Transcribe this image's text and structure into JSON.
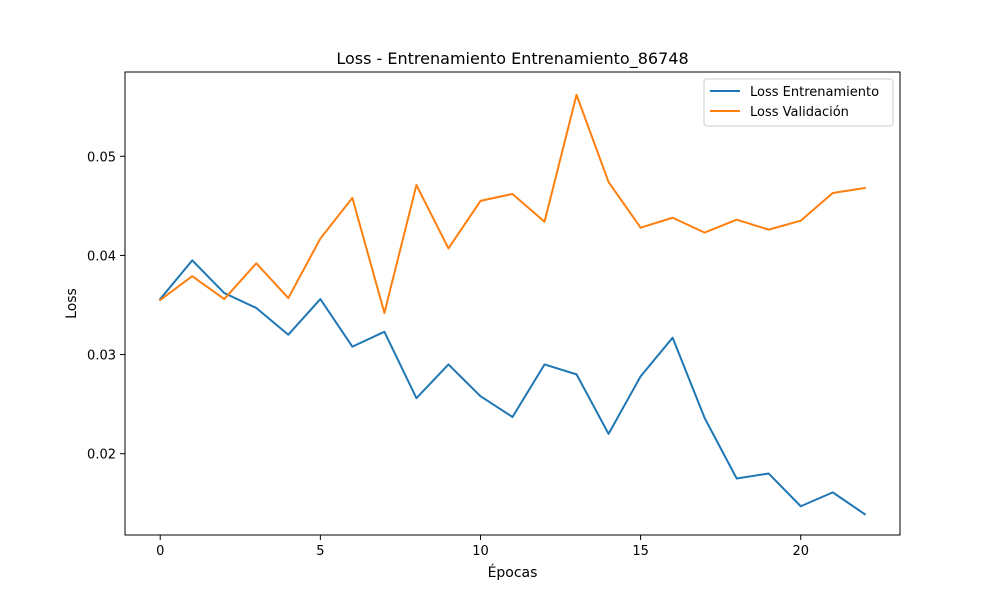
{
  "chart_data": {
    "type": "line",
    "title": "Loss - Entrenamiento Entrenamiento_86748",
    "xlabel": "Épocas",
    "ylabel": "Loss",
    "x": [
      0,
      1,
      2,
      3,
      4,
      5,
      6,
      7,
      8,
      9,
      10,
      11,
      12,
      13,
      14,
      15,
      16,
      17,
      18,
      19,
      20,
      21,
      22
    ],
    "xlim": [
      -1.1,
      23.1
    ],
    "ylim": [
      0.0118,
      0.0585
    ],
    "xticks": [
      0,
      5,
      10,
      15,
      20
    ],
    "yticks": [
      0.02,
      0.03,
      0.04,
      0.05
    ],
    "xtick_labels": [
      "0",
      "5",
      "10",
      "15",
      "20"
    ],
    "ytick_labels": [
      "0.02",
      "0.03",
      "0.04",
      "0.05"
    ],
    "grid": false,
    "legend_position": "top-right",
    "series": [
      {
        "name": "Loss Entrenamiento",
        "color": "#1f77b4",
        "values": [
          0.0356,
          0.0395,
          0.0362,
          0.0347,
          0.032,
          0.0356,
          0.0308,
          0.0323,
          0.0256,
          0.029,
          0.0258,
          0.0237,
          0.029,
          0.028,
          0.022,
          0.0278,
          0.0317,
          0.0236,
          0.0175,
          0.018,
          0.0147,
          0.0161,
          0.0139
        ]
      },
      {
        "name": "Loss Validación",
        "color": "#ff7f0e",
        "values": [
          0.0355,
          0.0379,
          0.0356,
          0.0392,
          0.0357,
          0.0417,
          0.0458,
          0.0342,
          0.0471,
          0.0407,
          0.0455,
          0.0462,
          0.0434,
          0.0562,
          0.0474,
          0.0428,
          0.0438,
          0.0423,
          0.0436,
          0.0426,
          0.0435,
          0.0463,
          0.0468
        ]
      }
    ]
  }
}
